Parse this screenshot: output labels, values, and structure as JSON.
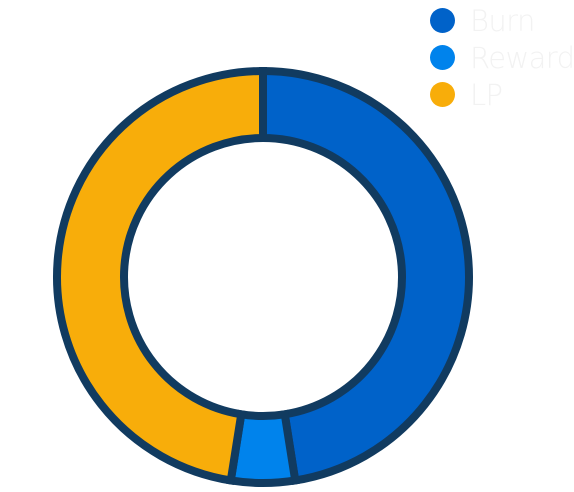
{
  "chart_data": {
    "type": "pie",
    "variant": "donut",
    "categories": [
      "Burn",
      "Reward",
      "LP"
    ],
    "values": [
      47.5,
      5,
      47.5
    ],
    "colors": [
      "#0062C9",
      "#0083EC",
      "#F8AD0A"
    ],
    "stroke_color": "#113B60",
    "legend_placement": "top-right",
    "legend_text_color": "#f2f2f2"
  }
}
